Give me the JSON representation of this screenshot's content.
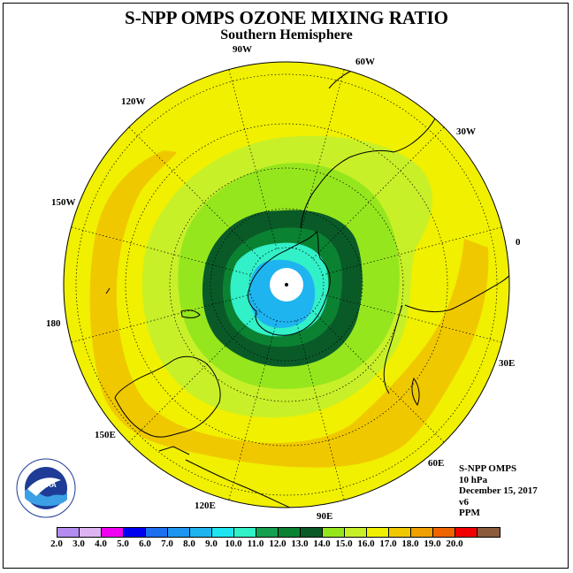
{
  "title": "S-NPP OMPS OZONE MIXING RATIO",
  "subtitle": "Southern Hemisphere",
  "longitude_labels": [
    "90W",
    "60W",
    "30W",
    "0",
    "30E",
    "60E",
    "90E",
    "120E",
    "150E",
    "180",
    "150W",
    "120W"
  ],
  "info": {
    "instrument": "S-NPP OMPS",
    "level": "10 hPa",
    "date": "December 15, 2017",
    "version": "v6",
    "units": "PPM"
  },
  "logo_text": "NOAA",
  "colorbar": {
    "labels": [
      "2.0",
      "3.0",
      "4.0",
      "5.0",
      "6.0",
      "7.0",
      "8.0",
      "9.0",
      "10.0",
      "11.0",
      "12.0",
      "13.0",
      "14.0",
      "15.0",
      "16.0",
      "17.0",
      "18.0",
      "19.0",
      "20.0"
    ],
    "colors": [
      "#b48cf0",
      "#dcb4f0",
      "#f000f0",
      "#0000f0",
      "#1e6ef0",
      "#1e96f0",
      "#1eb4f0",
      "#1ee6f0",
      "#32f0c8",
      "#14a050",
      "#0a8232",
      "#0a5a28",
      "#96e61e",
      "#c8f028",
      "#f0f000",
      "#f0c800",
      "#f0a000",
      "#f06400",
      "#f00000",
      "#8c5a3c"
    ]
  },
  "map": {
    "projection": "south polar stereographic",
    "colors": {
      "background": "#f0f000",
      "band_17": "#f0c800",
      "band_14": "#c8f028",
      "band_13": "#96e61e",
      "band_12": "#0a8232",
      "band_11_inner": "#0a5a28",
      "band_10": "#32f0c8",
      "band_8": "#1eb4f0",
      "pole_missing": "#ffffff"
    }
  }
}
